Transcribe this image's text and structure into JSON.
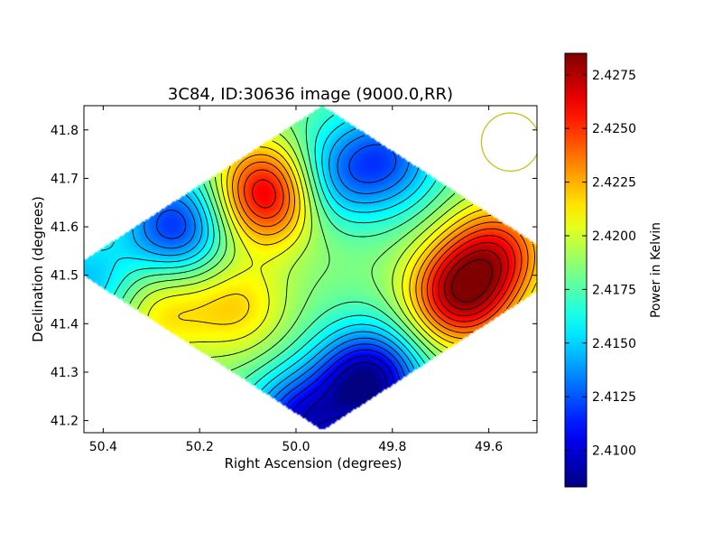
{
  "chart_data": {
    "type": "heatmap",
    "title": "3C84, ID:30636 image (9000.0,RR)",
    "xlabel": "Right Ascension (degrees)",
    "ylabel": "Declination (degrees)",
    "xlim": [
      50.44,
      49.5
    ],
    "ylim": [
      41.175,
      41.85
    ],
    "x_ticks": [
      50.4,
      50.2,
      50.0,
      49.8,
      49.6
    ],
    "x_tick_labels": [
      "50.4",
      "50.2",
      "50.0",
      "49.8",
      "49.6"
    ],
    "y_ticks": [
      41.2,
      41.3,
      41.4,
      41.5,
      41.6,
      41.7,
      41.8
    ],
    "y_tick_labels": [
      "41.2",
      "41.3",
      "41.4",
      "41.5",
      "41.6",
      "41.7",
      "41.8"
    ],
    "colormap": "jet",
    "colorbar": {
      "label": "Power in Kelvin",
      "range": [
        2.4083,
        2.4285
      ],
      "ticks": [
        2.41,
        2.4125,
        2.415,
        2.4175,
        2.42,
        2.4225,
        2.425,
        2.4275
      ],
      "tick_labels": [
        "2.4100",
        "2.4125",
        "2.4150",
        "2.4175",
        "2.4200",
        "2.4225",
        "2.4250",
        "2.4275"
      ]
    },
    "features": [
      {
        "ra": 49.66,
        "dec": 41.46,
        "value": 2.4272,
        "kind": "maximum"
      },
      {
        "ra": 49.58,
        "dec": 41.55,
        "value": 2.4245,
        "kind": "local"
      },
      {
        "ra": 50.06,
        "dec": 41.67,
        "value": 2.427,
        "kind": "maximum"
      },
      {
        "ra": 50.12,
        "dec": 41.435,
        "value": 2.4215,
        "kind": "local"
      },
      {
        "ra": 50.28,
        "dec": 41.43,
        "value": 2.4215,
        "kind": "local"
      },
      {
        "ra": 49.85,
        "dec": 41.28,
        "value": 2.4085,
        "kind": "minimum"
      },
      {
        "ra": 49.99,
        "dec": 41.19,
        "value": 2.4105,
        "kind": "local"
      },
      {
        "ra": 50.25,
        "dec": 41.6,
        "value": 2.4115,
        "kind": "minimum"
      },
      {
        "ra": 49.81,
        "dec": 41.74,
        "value": 2.413,
        "kind": "minimum"
      },
      {
        "ra": 50.43,
        "dec": 41.48,
        "value": 2.4145,
        "kind": "local"
      },
      {
        "ra": 49.93,
        "dec": 41.7,
        "value": 2.414,
        "kind": "local"
      },
      {
        "ra": 49.9,
        "dec": 41.56,
        "value": 2.4185,
        "kind": "local"
      }
    ],
    "background_value": 2.418,
    "beam": {
      "ra": 49.555,
      "dec": 41.775,
      "radius_deg": 0.06,
      "color": "#c2c21a"
    }
  }
}
